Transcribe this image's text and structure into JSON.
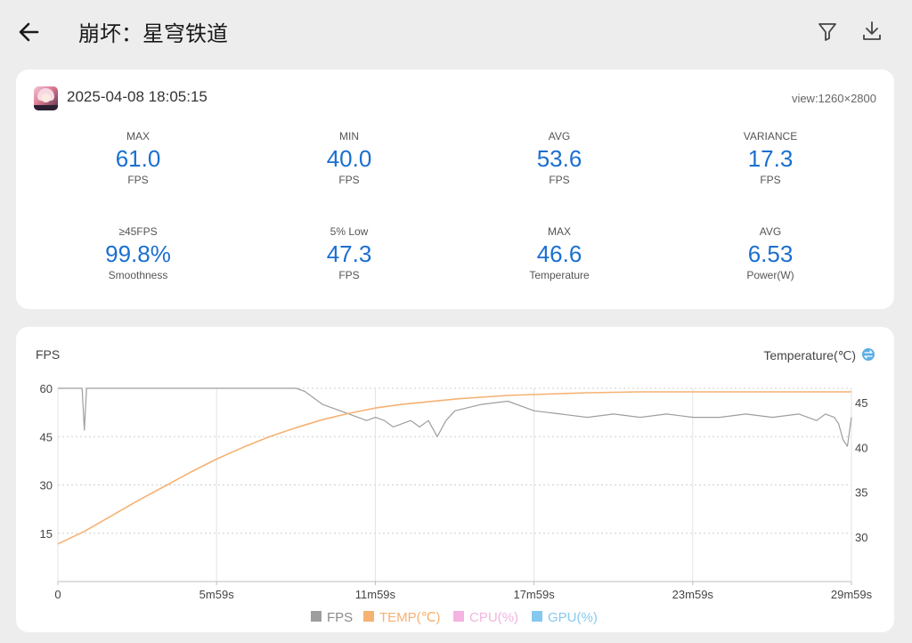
{
  "header": {
    "title": "崩坏：星穹铁道",
    "back_icon": "arrow-left-icon",
    "filter_icon": "filter-icon",
    "download_icon": "download-icon"
  },
  "session": {
    "datetime": "2025-04-08 18:05:15",
    "view": "view:1260×2800",
    "app_icon": "game-app-icon"
  },
  "stats": [
    {
      "label": "MAX",
      "value": "61.0",
      "unit": "FPS"
    },
    {
      "label": "MIN",
      "value": "40.0",
      "unit": "FPS"
    },
    {
      "label": "AVG",
      "value": "53.6",
      "unit": "FPS"
    },
    {
      "label": "VARIANCE",
      "value": "17.3",
      "unit": "FPS"
    },
    {
      "label": "≥45FPS",
      "value": "99.8%",
      "unit": "Smoothness"
    },
    {
      "label": "5% Low",
      "value": "47.3",
      "unit": "FPS"
    },
    {
      "label": "MAX",
      "value": "46.6",
      "unit": "Temperature"
    },
    {
      "label": "AVG",
      "value": "6.53",
      "unit": "Power(W)"
    }
  ],
  "colors": {
    "accent": "#1b6fd0",
    "fps_series": "#9e9e9e",
    "temp_series": "#f5b273",
    "cpu_series": "#f4b3e0",
    "gpu_series": "#86c9f0",
    "temp_axis_icon": "#5aaee6"
  },
  "chart_data": {
    "type": "line",
    "ylabel_left": "FPS",
    "ylabel_right": "Temperature(℃)",
    "y_ticks_left": [
      "60",
      "45",
      "30",
      "15"
    ],
    "y_ticks_right": [
      "45",
      "40",
      "35",
      "30"
    ],
    "x_ticks": [
      "0",
      "5m59s",
      "11m59s",
      "17m59s",
      "23m59s",
      "29m59s"
    ],
    "ylim_left": [
      0,
      60
    ],
    "ylim_right": [
      25,
      46.6
    ],
    "xlim_seconds": [
      0,
      1799
    ],
    "grid": true,
    "legend_position": "bottom",
    "series": [
      {
        "name": "FPS",
        "x": [
          0,
          30,
          55,
          60,
          65,
          120,
          180,
          240,
          300,
          360,
          400,
          420,
          440,
          460,
          480,
          500,
          520,
          540,
          560,
          580,
          600,
          620,
          640,
          660,
          680,
          700,
          720,
          740,
          760,
          780,
          800,
          820,
          840,
          860,
          880,
          900,
          960,
          1020,
          1080,
          1140,
          1200,
          1260,
          1320,
          1380,
          1440,
          1500,
          1560,
          1620,
          1680,
          1720,
          1740,
          1760,
          1770,
          1780,
          1790,
          1799
        ],
        "y": [
          60,
          60,
          60,
          47,
          60,
          60,
          60,
          60,
          60,
          60,
          60,
          60,
          60,
          60,
          60,
          60,
          60,
          60,
          59,
          57,
          55,
          54,
          53,
          52,
          51,
          50,
          51,
          50,
          48,
          49,
          50,
          48,
          50,
          45,
          50,
          53,
          55,
          56,
          53,
          52,
          51,
          52,
          51,
          52,
          51,
          51,
          52,
          51,
          52,
          50,
          52,
          51,
          49,
          44,
          42,
          51
        ]
      },
      {
        "name": "TEMP(℃)",
        "x": [
          0,
          60,
          120,
          180,
          240,
          300,
          360,
          420,
          480,
          540,
          600,
          660,
          720,
          780,
          840,
          900,
          960,
          1020,
          1080,
          1140,
          1200,
          1320,
          1440,
          1560,
          1680,
          1799
        ],
        "y": [
          29.2,
          30.6,
          32.3,
          34.0,
          35.6,
          37.2,
          38.7,
          40.0,
          41.2,
          42.2,
          43.1,
          43.8,
          44.4,
          44.8,
          45.1,
          45.4,
          45.6,
          45.8,
          45.9,
          46.0,
          46.1,
          46.2,
          46.2,
          46.2,
          46.2,
          46.2
        ]
      },
      {
        "name": "CPU(%)",
        "x": [],
        "y": []
      },
      {
        "name": "GPU(%)",
        "x": [],
        "y": []
      }
    ]
  }
}
